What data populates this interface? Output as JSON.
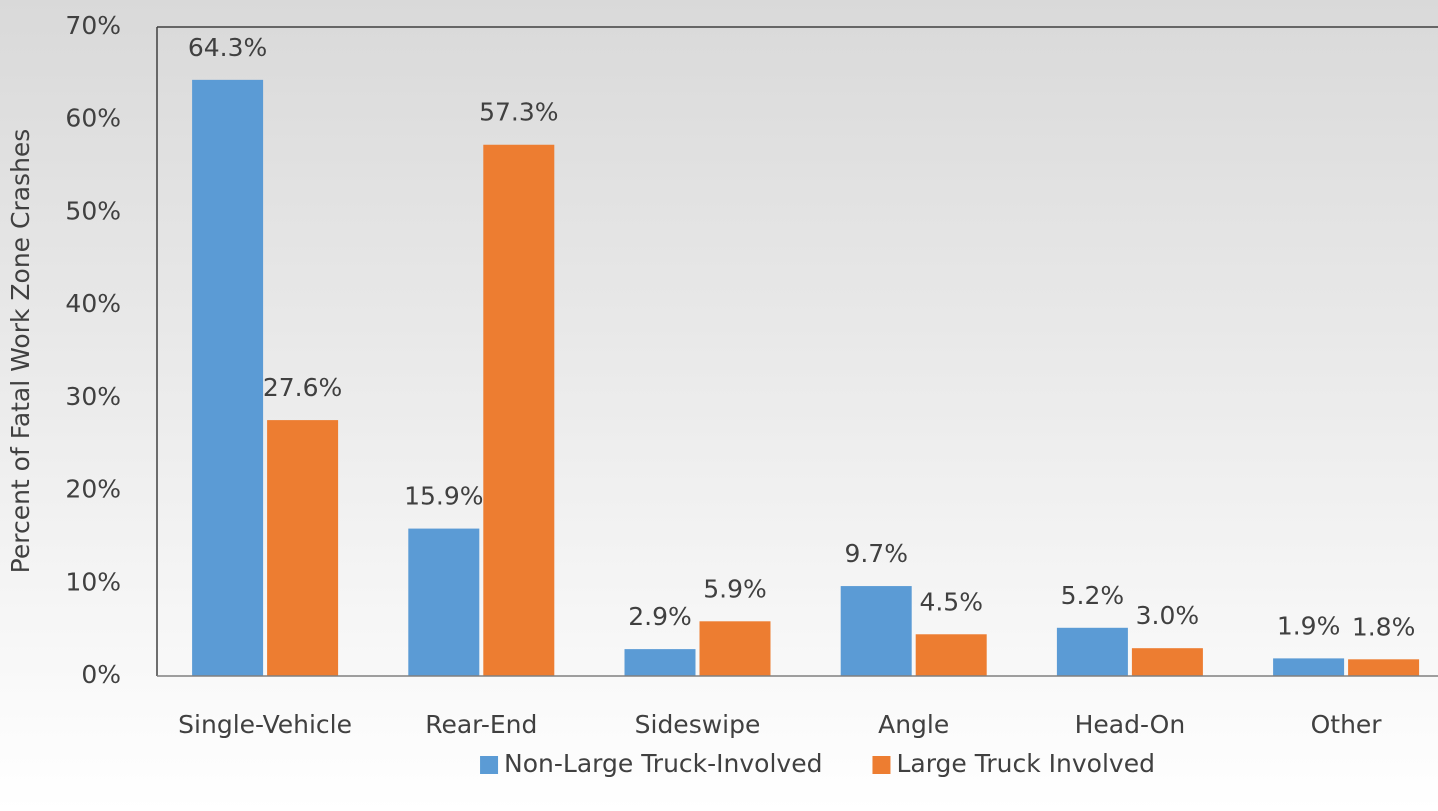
{
  "chart_data": {
    "type": "bar",
    "y_label": "Percent of Fatal Work Zone Crashes",
    "categories": [
      "Single-Vehicle",
      "Rear-End",
      "Sideswipe",
      "Angle",
      "Head-On",
      "Other"
    ],
    "series": [
      {
        "name": "Non-Large Truck-Involved",
        "color": "#5b9bd5",
        "values": [
          64.3,
          15.9,
          2.9,
          9.7,
          5.2,
          1.9
        ],
        "value_labels": [
          "64.3%",
          "15.9%",
          "2.9%",
          "9.7%",
          "5.2%",
          "1.9%"
        ]
      },
      {
        "name": "Large Truck Involved",
        "color": "#ed7d31",
        "values": [
          27.6,
          57.3,
          5.9,
          4.5,
          3.0,
          1.8
        ],
        "value_labels": [
          "27.6%",
          "57.3%",
          "5.9%",
          "4.5%",
          "3.0%",
          "1.8%"
        ]
      }
    ],
    "ylim": [
      0,
      70
    ],
    "yticks": [
      {
        "value": 0,
        "label": "0%"
      },
      {
        "value": 10,
        "label": "10%"
      },
      {
        "value": 20,
        "label": "20%"
      },
      {
        "value": 30,
        "label": "30%"
      },
      {
        "value": 40,
        "label": "40%"
      },
      {
        "value": 50,
        "label": "50%"
      },
      {
        "value": 60,
        "label": "60%"
      },
      {
        "value": 70,
        "label": "70%"
      }
    ],
    "legend": "bottom"
  }
}
